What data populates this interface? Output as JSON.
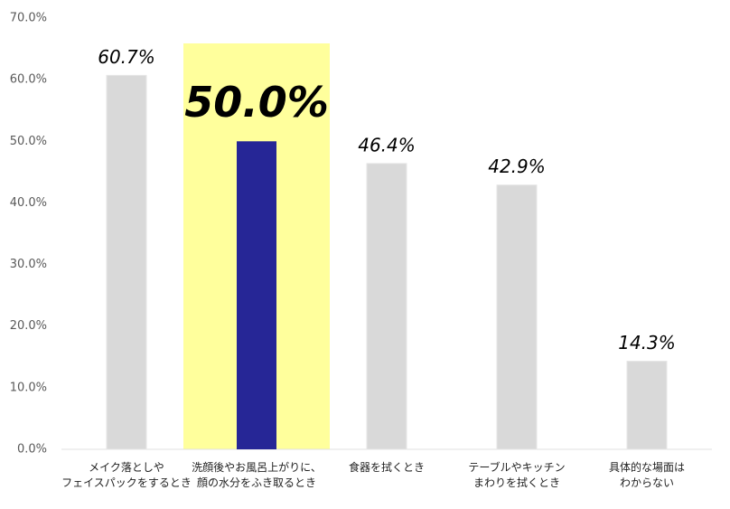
{
  "chart_data": {
    "type": "bar",
    "categories": [
      [
        "メイク落としや",
        "フェイスパックをするとき"
      ],
      [
        "洗顔後やお風呂上がりに、",
        "顔の水分をふき取るとき"
      ],
      [
        "食器を拭くとき"
      ],
      [
        "テーブルやキッチン",
        "まわりを拭くとき"
      ],
      [
        "具体的な場面は",
        "わからない"
      ]
    ],
    "values": [
      60.7,
      50.0,
      46.4,
      42.9,
      14.3
    ],
    "value_labels": [
      "60.7%",
      "50.0%",
      "46.4%",
      "42.9%",
      "14.3%"
    ],
    "colors": [
      "#d9d9d9",
      "#262696",
      "#d9d9d9",
      "#d9d9d9",
      "#d9d9d9"
    ],
    "background_colors": [
      null,
      "#ffff9c",
      null,
      null,
      null
    ],
    "ylim": [
      0,
      70
    ],
    "yticks": [
      {
        "value": 0,
        "label": "0.0%"
      },
      {
        "value": 10,
        "label": "10.0%"
      },
      {
        "value": 20,
        "label": "20.0%"
      },
      {
        "value": 30,
        "label": "30.0%"
      },
      {
        "value": 40,
        "label": "40.0%"
      },
      {
        "value": 50,
        "label": "50.0%"
      },
      {
        "value": 60,
        "label": "60.0%"
      },
      {
        "value": 70,
        "label": "70.0%"
      }
    ],
    "grid": false
  }
}
